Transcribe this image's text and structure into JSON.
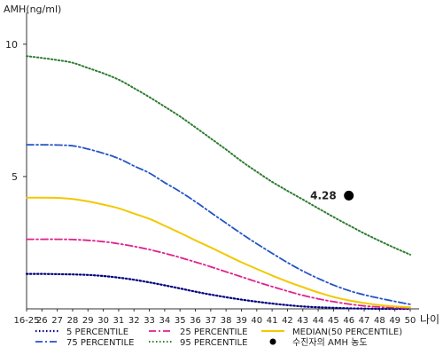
{
  "chart_data": {
    "type": "line",
    "ylabel": "AMH(ng/ml)",
    "xlabel": "나이",
    "ylim": [
      0,
      11.2
    ],
    "ytick_values": [
      5,
      10
    ],
    "ytick_labels": [
      "5",
      "10"
    ],
    "categories": [
      "16-25",
      "26",
      "27",
      "28",
      "29",
      "30",
      "31",
      "32",
      "33",
      "34",
      "35",
      "36",
      "37",
      "38",
      "39",
      "40",
      "41",
      "42",
      "43",
      "44",
      "45",
      "46",
      "47",
      "48",
      "49",
      "50"
    ],
    "series": [
      {
        "name": "5 PERCENTILE",
        "color": "#000080",
        "dash": "1.5,2.5",
        "width": 2.2,
        "values": [
          1.32,
          1.32,
          1.31,
          1.3,
          1.28,
          1.24,
          1.18,
          1.1,
          1.0,
          0.89,
          0.77,
          0.65,
          0.54,
          0.44,
          0.35,
          0.27,
          0.2,
          0.14,
          0.09,
          0.06,
          0.04,
          0.02,
          0.01,
          0.0,
          0.0,
          0.0
        ]
      },
      {
        "name": "25 PERCENTILE",
        "color": "#e0208f",
        "dash": "8,3,2,3",
        "width": 1.8,
        "values": [
          2.63,
          2.63,
          2.63,
          2.62,
          2.59,
          2.54,
          2.46,
          2.36,
          2.24,
          2.1,
          1.94,
          1.77,
          1.59,
          1.4,
          1.21,
          1.02,
          0.84,
          0.67,
          0.51,
          0.38,
          0.27,
          0.18,
          0.11,
          0.07,
          0.04,
          0.03
        ]
      },
      {
        "name": "MEDIAN(50 PERCENTILE)",
        "color": "#f2c800",
        "dash": "",
        "width": 2,
        "values": [
          4.2,
          4.2,
          4.19,
          4.15,
          4.06,
          3.94,
          3.8,
          3.6,
          3.4,
          3.14,
          2.87,
          2.59,
          2.32,
          2.04,
          1.76,
          1.51,
          1.26,
          1.03,
          0.82,
          0.62,
          0.45,
          0.32,
          0.22,
          0.14,
          0.09,
          0.06
        ]
      },
      {
        "name": "75 PERCENTILE",
        "color": "#2454c7",
        "dash": "8,3,2,3",
        "width": 1.8,
        "values": [
          6.2,
          6.2,
          6.19,
          6.16,
          6.04,
          5.88,
          5.68,
          5.4,
          5.13,
          4.77,
          4.43,
          4.05,
          3.64,
          3.24,
          2.84,
          2.46,
          2.1,
          1.75,
          1.43,
          1.15,
          0.9,
          0.69,
          0.53,
          0.4,
          0.28,
          0.17
        ]
      },
      {
        "name": "95 PERCENTILE",
        "color": "#2e7d32",
        "dash": "1.5,2.5",
        "width": 2,
        "values": [
          9.55,
          9.48,
          9.4,
          9.3,
          9.1,
          8.9,
          8.66,
          8.34,
          8.0,
          7.64,
          7.27,
          6.86,
          6.44,
          6.02,
          5.58,
          5.18,
          4.8,
          4.46,
          4.13,
          3.8,
          3.47,
          3.16,
          2.85,
          2.57,
          2.3,
          2.05
        ]
      }
    ],
    "marker": {
      "name": "수진자의 AMH 농도",
      "x": "46",
      "y": 4.28,
      "label": "4.28",
      "color": "#000000"
    },
    "legend_columns": [
      [
        "5 PERCENTILE",
        "75 PERCENTILE"
      ],
      [
        "25 PERCENTILE",
        "95 PERCENTILE"
      ],
      [
        "MEDIAN(50 PERCENTILE)",
        "수진자의 AMH 농도"
      ]
    ],
    "legend_position": "bottom",
    "grid": false
  }
}
